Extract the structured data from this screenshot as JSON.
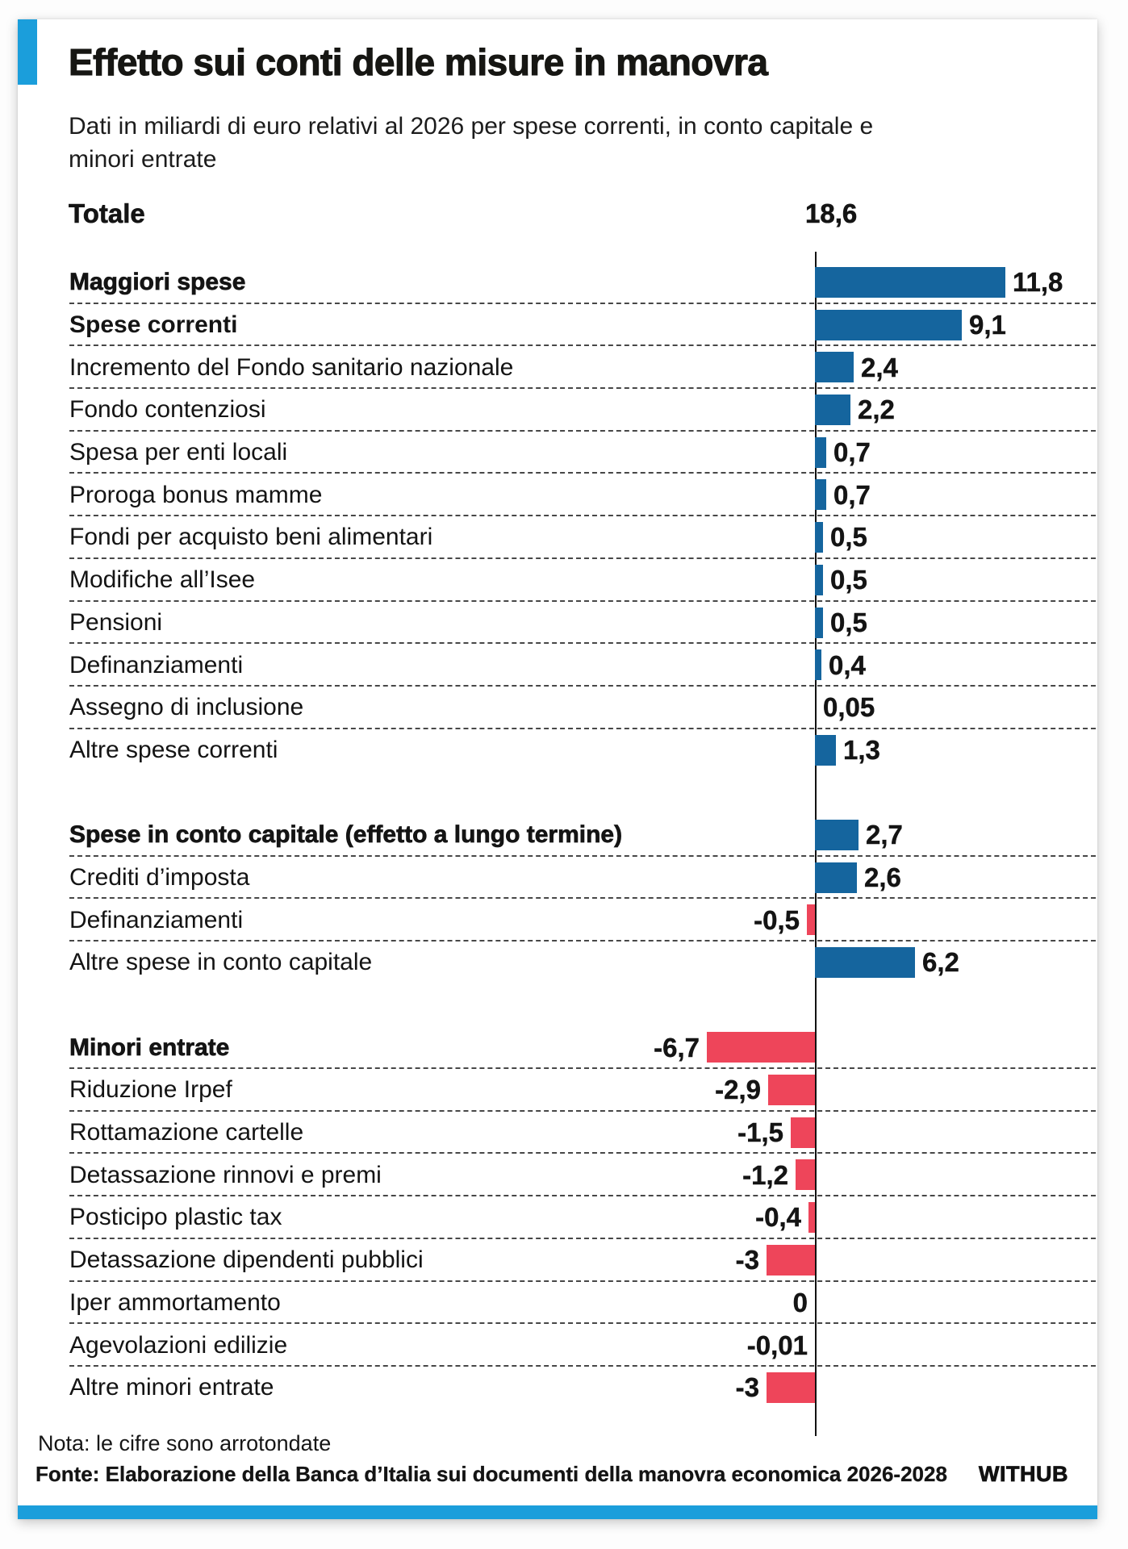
{
  "header": {
    "title": "Effetto sui conti delle misure in manovra",
    "subtitle": "Dati in miliardi di euro relativi al 2026 per spese correnti, in conto capitale e minori entrate",
    "total_label": "Totale",
    "total_value": "18,6"
  },
  "footer": {
    "note": "Nota: le cifre sono arrotondate",
    "source": "Fonte: Elaborazione della Banca d’Italia sui documenti della manovra economica 2026-2028",
    "brand": "WITHUB"
  },
  "colors": {
    "positive_bar": "#15659E",
    "negative_bar": "#EE455A",
    "accent": "#1B9EDB"
  },
  "chart_data": {
    "type": "bar",
    "orientation": "horizontal",
    "unit": "miliardi di euro",
    "title": "Effetto sui conti delle misure in manovra",
    "total": 18.6,
    "zero_axis": true,
    "negative_direction": "left",
    "rows": [
      {
        "label": "Maggiori spese",
        "weight": "heavy",
        "value": 11.8,
        "display": "11,8",
        "sep": true
      },
      {
        "label": "Spese correnti",
        "weight": "semi",
        "value": 9.1,
        "display": "9,1",
        "sep": true
      },
      {
        "label": "Incremento del Fondo sanitario nazionale",
        "weight": "regular",
        "value": 2.4,
        "display": "2,4",
        "sep": true
      },
      {
        "label": "Fondo contenziosi",
        "weight": "regular",
        "value": 2.2,
        "display": "2,2",
        "sep": true
      },
      {
        "label": "Spesa per enti locali",
        "weight": "regular",
        "value": 0.7,
        "display": "0,7",
        "sep": true
      },
      {
        "label": "Proroga bonus mamme",
        "weight": "regular",
        "value": 0.7,
        "display": "0,7",
        "sep": true
      },
      {
        "label": "Fondi per acquisto beni alimentari",
        "weight": "regular",
        "value": 0.5,
        "display": "0,5",
        "sep": true
      },
      {
        "label": "Modifiche all’Isee",
        "weight": "regular",
        "value": 0.5,
        "display": "0,5",
        "sep": true
      },
      {
        "label": "Pensioni",
        "weight": "regular",
        "value": 0.5,
        "display": "0,5",
        "sep": true
      },
      {
        "label": "Definanziamenti",
        "weight": "regular",
        "value": 0.4,
        "display": "0,4",
        "sep": true
      },
      {
        "label": "Assegno di inclusione",
        "weight": "regular",
        "value": 0.05,
        "display": "0,05",
        "sep": true
      },
      {
        "label": "Altre spese correnti",
        "weight": "regular",
        "value": 1.3,
        "display": "1,3",
        "sep": false
      },
      {
        "label": "Spese in conto capitale (effetto a lungo termine)",
        "weight": "heavy",
        "value": 2.7,
        "display": "2,7",
        "sep": true,
        "gap_before": true
      },
      {
        "label": "Crediti d’imposta",
        "weight": "regular",
        "value": 2.6,
        "display": "2,6",
        "sep": true
      },
      {
        "label": "Definanziamenti",
        "weight": "regular",
        "value": -0.5,
        "display": "-0,5",
        "sep": true
      },
      {
        "label": "Altre spese in conto capitale",
        "weight": "regular",
        "value": 6.2,
        "display": "6,2",
        "sep": false
      },
      {
        "label": "Minori entrate",
        "weight": "heavy",
        "value": -6.7,
        "display": "-6,7",
        "sep": true,
        "gap_before": true
      },
      {
        "label": "Riduzione Irpef",
        "weight": "regular",
        "value": -2.9,
        "display": "-2,9",
        "sep": true
      },
      {
        "label": "Rottamazione cartelle",
        "weight": "regular",
        "value": -1.5,
        "display": "-1,5",
        "sep": true
      },
      {
        "label": "Detassazione rinnovi e premi",
        "weight": "regular",
        "value": -1.2,
        "display": "-1,2",
        "sep": true
      },
      {
        "label": "Posticipo plastic tax",
        "weight": "regular",
        "value": -0.4,
        "display": "-0,4",
        "sep": true
      },
      {
        "label": "Detassazione dipendenti pubblici",
        "weight": "regular",
        "value": -3,
        "display": "-3",
        "sep": true
      },
      {
        "label": "Iper ammortamento",
        "weight": "regular",
        "value": 0,
        "display": "0",
        "sep": true
      },
      {
        "label": "Agevolazioni edilizie",
        "weight": "regular",
        "value": -0.01,
        "display": "-0,01",
        "sep": true
      },
      {
        "label": "Altre minori entrate",
        "weight": "regular",
        "value": -3,
        "display": "-3",
        "sep": false
      }
    ]
  }
}
